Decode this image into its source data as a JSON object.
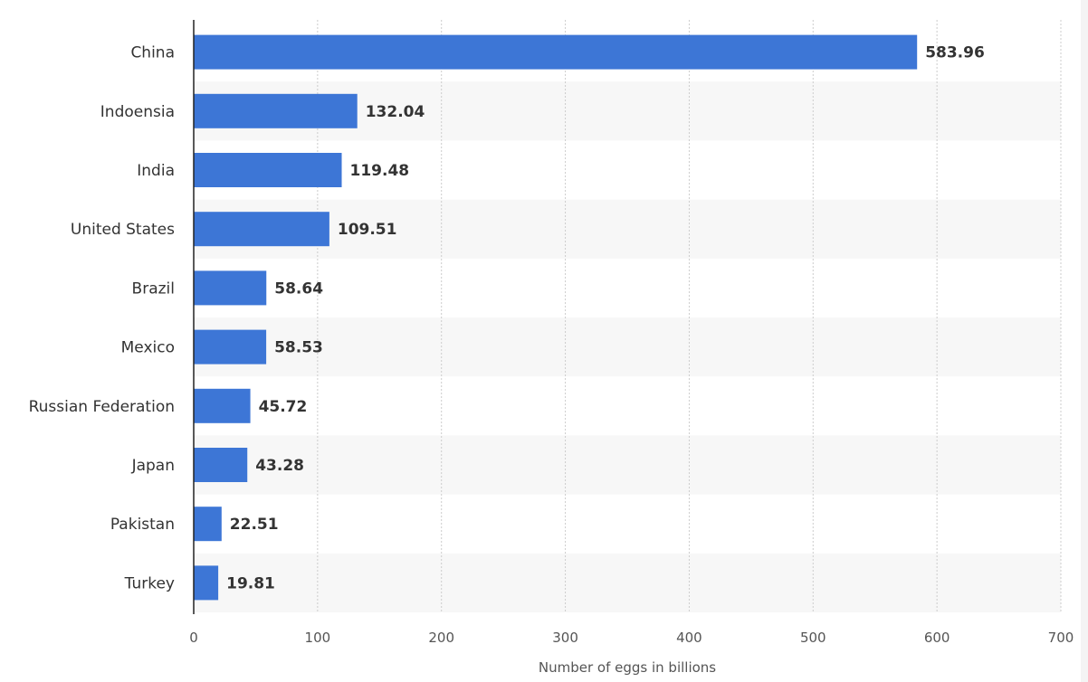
{
  "chart_data": {
    "type": "bar",
    "orientation": "horizontal",
    "categories": [
      "China",
      "Indoensia",
      "India",
      "United States",
      "Brazil",
      "Mexico",
      "Russian Federation",
      "Japan",
      "Pakistan",
      "Turkey"
    ],
    "values": [
      583.96,
      132.04,
      119.48,
      109.51,
      58.64,
      58.53,
      45.72,
      43.28,
      22.51,
      19.81
    ],
    "value_labels": [
      "583.96",
      "132.04",
      "119.48",
      "109.51",
      "58.64",
      "58.53",
      "45.72",
      "43.28",
      "22.51",
      "19.81"
    ],
    "xlabel": "Number of eggs in billions",
    "ylabel": "",
    "xlim": [
      0,
      700
    ],
    "xticks": [
      0,
      100,
      200,
      300,
      400,
      500,
      600,
      700
    ],
    "xtick_labels": [
      "0",
      "100",
      "200",
      "300",
      "400",
      "500",
      "600",
      "700"
    ],
    "grid": true,
    "legend": "none",
    "colors": {
      "bar": "#3d76d6",
      "band": "#f7f7f7",
      "grid": "#cccccc",
      "axis": "#222222",
      "text": "#333333"
    }
  }
}
